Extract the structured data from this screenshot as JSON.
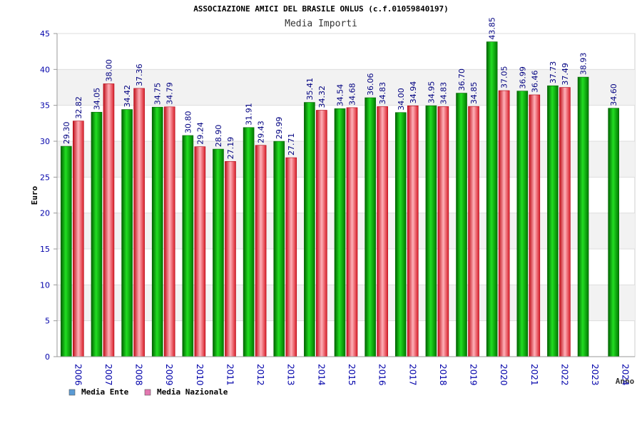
{
  "chart_data": {
    "type": "bar",
    "title": "ASSOCIAZIONE AMICI DEL BRASILE ONLUS (c.f.01059840197)",
    "subtitle": "Media Importi",
    "xlabel": "Anno",
    "ylabel": "Euro",
    "ylim": [
      0,
      45
    ],
    "yticks": [
      0,
      5,
      10,
      15,
      20,
      25,
      30,
      35,
      40,
      45
    ],
    "grid": true,
    "legend_position": "bottom-left",
    "categories": [
      "2006",
      "2007",
      "2008",
      "2009",
      "2010",
      "2011",
      "2012",
      "2013",
      "2014",
      "2015",
      "2016",
      "2017",
      "2018",
      "2019",
      "2020",
      "2021",
      "2022",
      "2023",
      "2024"
    ],
    "series": [
      {
        "name": "Media Ente",
        "legend_color": "#5b9bd5",
        "color": "#00b000",
        "values": [
          29.3,
          34.05,
          34.42,
          34.75,
          30.8,
          28.9,
          31.91,
          29.99,
          35.41,
          34.54,
          36.06,
          34.0,
          34.95,
          36.7,
          43.85,
          36.99,
          37.73,
          38.93,
          34.6
        ],
        "labels": [
          "29.30",
          "34.05",
          "34.42",
          "34.75",
          "30.80",
          "28.90",
          "31.91",
          "29.99",
          "35.41",
          "34.54",
          "36.06",
          "34.00",
          "34.95",
          "36.70",
          "43.85",
          "36.99",
          "37.73",
          "38.93",
          "34.60"
        ]
      },
      {
        "name": "Media Nazionale",
        "legend_color": "#e377b0",
        "color": "#e8303a",
        "values": [
          32.82,
          38.0,
          37.36,
          34.79,
          29.24,
          27.19,
          29.43,
          27.71,
          34.32,
          34.68,
          34.83,
          34.94,
          34.83,
          34.85,
          37.05,
          36.46,
          37.49,
          null,
          null
        ],
        "labels": [
          "32.82",
          "38.00",
          "37.36",
          "34.79",
          "29.24",
          "27.19",
          "29.43",
          "27.71",
          "34.32",
          "34.68",
          "34.83",
          "34.94",
          "34.83",
          "34.85",
          "37.05",
          "36.46",
          "37.49",
          null,
          null
        ]
      }
    ]
  }
}
